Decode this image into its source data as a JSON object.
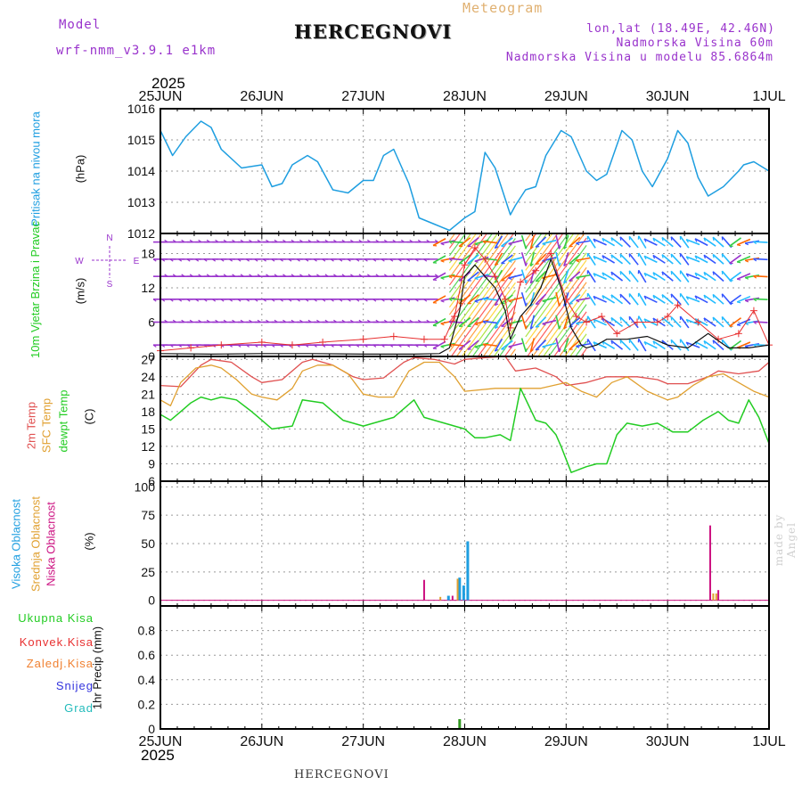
{
  "header": {
    "model_label": "Model",
    "model_name": "wrf-nmm_v3.9.1 e1km",
    "title": "HERCEGNOVI",
    "meteogram": "Meteogram",
    "lonlat": "lon,lat (18.49E, 42.46N)",
    "altitude": "Nadmorska Visina 60m",
    "model_altitude": "Nadmorska Visina u modelu 85.6864m",
    "year_top": "2025",
    "year_bottom": "2025",
    "footer_title": "HERCEGNOVI",
    "watermark": "made by Angel"
  },
  "colors": {
    "pressure": "#1e9ee0",
    "wind_speed": "#111111",
    "gust": "#e83030",
    "temp2m": "#e05050",
    "sfc_temp": "#e0a030",
    "dewpoint": "#22cc22",
    "high_cloud": "#1e9ee0",
    "mid_cloud": "#e0a030",
    "low_cloud": "#cc1080",
    "wind_barb": "#9933cc",
    "label_model": "#9933cc"
  },
  "chart_data": [
    {
      "type": "line",
      "panel": "pressure",
      "ylabel_name": "Pritisak na nivou mora",
      "ylabel_unit": "(hPa)",
      "ylim": [
        1012,
        1016
      ],
      "yticks": [
        1012,
        1013,
        1014,
        1015,
        1016
      ],
      "xlabels": [
        "25JUN",
        "26JUN",
        "27JUN",
        "28JUN",
        "29JUN",
        "30JUN",
        "1JUL"
      ],
      "grid": true,
      "series": [
        {
          "name": "Pritisak na nivou mora",
          "x": [
            0,
            0.12,
            0.25,
            0.4,
            0.5,
            0.6,
            0.8,
            1.0,
            1.1,
            1.2,
            1.3,
            1.45,
            1.55,
            1.7,
            1.85,
            2.0,
            2.1,
            2.2,
            2.3,
            2.45,
            2.55,
            2.7,
            2.85,
            3.0,
            3.1,
            3.2,
            3.3,
            3.45,
            3.5,
            3.6,
            3.7,
            3.8,
            3.95,
            4.05,
            4.2,
            4.3,
            4.4,
            4.55,
            4.65,
            4.75,
            4.85,
            5.0,
            5.1,
            5.2,
            5.3,
            5.4,
            5.55,
            5.7,
            5.75,
            5.85,
            6.0
          ],
          "values": [
            1015.3,
            1014.5,
            1015.1,
            1015.6,
            1015.4,
            1014.7,
            1014.1,
            1014.2,
            1013.5,
            1013.6,
            1014.2,
            1014.5,
            1014.3,
            1013.4,
            1013.3,
            1013.7,
            1013.7,
            1014.5,
            1014.7,
            1013.6,
            1012.5,
            1012.3,
            1012.1,
            1012.5,
            1012.7,
            1014.6,
            1014.1,
            1012.6,
            1012.9,
            1013.4,
            1013.5,
            1014.5,
            1015.3,
            1015.1,
            1014.0,
            1013.7,
            1013.9,
            1015.3,
            1015.0,
            1014.0,
            1013.5,
            1014.4,
            1015.3,
            1014.9,
            1013.8,
            1013.2,
            1013.5,
            1014.0,
            1014.2,
            1014.3,
            1014.0
          ]
        }
      ]
    },
    {
      "type": "line",
      "panel": "wind",
      "ylabel_name": "10m Vjetar Brzina i Pravac",
      "ylabel_unit": "(m/s)",
      "compass": {
        "n": "N",
        "s": "S",
        "e": "E",
        "w": "W"
      },
      "ylim": [
        0,
        21.5
      ],
      "yticks": [
        0,
        6,
        12,
        18
      ],
      "barb_levels": [
        2,
        6,
        10,
        14,
        17,
        20
      ],
      "grid": true,
      "series": [
        {
          "name": "brzina",
          "x": [
            0,
            0.5,
            1.0,
            1.5,
            2.0,
            2.5,
            2.75,
            2.85,
            2.95,
            3.0,
            3.1,
            3.2,
            3.3,
            3.4,
            3.45,
            3.55,
            3.65,
            3.75,
            3.85,
            3.95,
            4.05,
            4.15,
            4.2,
            4.3,
            4.4,
            4.6,
            4.8,
            5.0,
            5.2,
            5.4,
            5.6,
            5.8,
            6.0
          ],
          "values": [
            0.5,
            0.4,
            0.5,
            0.5,
            0.4,
            0.4,
            0.5,
            1.5,
            8,
            14,
            16,
            14,
            12,
            8,
            3,
            7,
            9,
            12,
            17,
            12,
            5,
            2,
            1.5,
            2,
            3,
            3,
            3.5,
            2,
            1.5,
            4,
            1.5,
            1.5,
            2
          ]
        },
        {
          "name": "udari",
          "x": [
            0,
            0.3,
            0.6,
            1.0,
            1.3,
            1.6,
            2.0,
            2.3,
            2.6,
            2.8,
            2.9,
            3.0,
            3.1,
            3.2,
            3.3,
            3.4,
            3.45,
            3.55,
            3.7,
            3.85,
            4.0,
            4.1,
            4.2,
            4.35,
            4.5,
            4.7,
            4.9,
            5.0,
            5.1,
            5.3,
            5.5,
            5.7,
            5.85,
            6.0
          ],
          "values": [
            1,
            1.5,
            2,
            2.5,
            2,
            2.5,
            3,
            3.5,
            3,
            3,
            7,
            16,
            19,
            17,
            14,
            10,
            5,
            13,
            15,
            18,
            10,
            7,
            6,
            7,
            4,
            6,
            6,
            7,
            9,
            6,
            3,
            4,
            8,
            2
          ]
        }
      ]
    },
    {
      "type": "line",
      "panel": "temperature",
      "ylabel_names": [
        "2m Temp",
        "SFC Temp",
        "dewpt Temp"
      ],
      "ylabel_unit": "(C)",
      "ylim": [
        6,
        27.5
      ],
      "yticks": [
        6,
        9,
        12,
        15,
        18,
        21,
        24,
        27
      ],
      "grid": true,
      "series": [
        {
          "name": "2m Temp",
          "x": [
            0,
            0.2,
            0.4,
            0.5,
            0.7,
            0.9,
            1.0,
            1.2,
            1.4,
            1.5,
            1.7,
            1.9,
            2.0,
            2.2,
            2.4,
            2.5,
            2.7,
            2.9,
            3.0,
            3.2,
            3.4,
            3.5,
            3.7,
            3.9,
            4.0,
            4.2,
            4.4,
            4.5,
            4.7,
            4.9,
            5.0,
            5.2,
            5.4,
            5.5,
            5.7,
            5.9,
            6.0
          ],
          "values": [
            22.5,
            22.3,
            26,
            27,
            26.5,
            24,
            23,
            23.5,
            26.5,
            27,
            26,
            24,
            23.5,
            23.8,
            26.5,
            27.3,
            27,
            26.2,
            27,
            27.3,
            27.5,
            25,
            25.5,
            24,
            22.5,
            23,
            24,
            24,
            24,
            23.5,
            22.8,
            22.8,
            24,
            25,
            24.5,
            25,
            26.5
          ]
        },
        {
          "name": "SFC Temp",
          "x": [
            0,
            0.1,
            0.2,
            0.35,
            0.5,
            0.6,
            0.75,
            0.9,
            1.0,
            1.15,
            1.3,
            1.4,
            1.55,
            1.7,
            1.85,
            2.0,
            2.15,
            2.3,
            2.45,
            2.6,
            2.75,
            2.9,
            3.0,
            3.3,
            3.5,
            3.75,
            4.0,
            4.15,
            4.3,
            4.45,
            4.6,
            4.8,
            5.0,
            5.1,
            5.25,
            5.4,
            5.55,
            5.7,
            5.85,
            6.0
          ],
          "values": [
            20,
            19,
            23,
            25.5,
            26,
            25.5,
            23.5,
            21,
            20.5,
            20,
            22,
            25,
            26,
            26,
            24.5,
            21,
            20.5,
            20.5,
            25,
            26.5,
            26.5,
            24,
            21.5,
            22,
            22,
            22,
            23,
            21.5,
            20.5,
            23,
            24,
            21.5,
            20,
            20.5,
            22.5,
            24,
            24.5,
            23,
            21.5,
            20.5
          ]
        },
        {
          "name": "dewpt Temp",
          "x": [
            0,
            0.1,
            0.2,
            0.3,
            0.4,
            0.5,
            0.6,
            0.75,
            0.9,
            1.0,
            1.1,
            1.3,
            1.4,
            1.6,
            1.8,
            2.0,
            2.1,
            2.3,
            2.5,
            2.6,
            2.8,
            3.0,
            3.1,
            3.2,
            3.35,
            3.45,
            3.55,
            3.7,
            3.8,
            3.9,
            3.95,
            4.05,
            4.2,
            4.3,
            4.4,
            4.5,
            4.6,
            4.75,
            4.9,
            5.05,
            5.2,
            5.35,
            5.5,
            5.6,
            5.7,
            5.8,
            5.9,
            6.0
          ],
          "values": [
            17.5,
            16.5,
            18,
            19.5,
            20.5,
            20,
            20.5,
            20,
            18,
            16.5,
            15,
            15.5,
            20,
            19.5,
            16.5,
            15.5,
            16,
            17,
            20,
            17,
            16,
            15,
            13.5,
            13.5,
            14,
            13,
            22,
            16.5,
            16,
            14,
            12,
            7.5,
            8.5,
            9,
            9,
            14,
            16,
            15.5,
            16,
            14.5,
            14.5,
            16.5,
            18,
            16.5,
            16,
            20,
            17,
            12.5
          ]
        }
      ]
    },
    {
      "type": "bar",
      "panel": "cloud",
      "ylabel_names": [
        "Visoka Oblacnost",
        "Srednja Oblacnost",
        "Niska Oblacnost"
      ],
      "ylabel_unit": "(%)",
      "ylim": [
        -5,
        105
      ],
      "yticks": [
        0,
        25,
        50,
        75,
        100
      ],
      "grid": true,
      "series": [
        {
          "name": "Visoka Oblacnost",
          "x": [
            2.84,
            2.95,
            2.99,
            3.03
          ],
          "values": [
            4,
            20,
            13,
            52
          ]
        },
        {
          "name": "Srednja Oblacnost",
          "x": [
            2.76,
            2.93,
            5.45,
            5.48
          ],
          "values": [
            3,
            19,
            6,
            6
          ]
        },
        {
          "name": "Niska Oblacnost",
          "x": [
            2.6,
            2.88,
            5.42,
            5.5
          ],
          "values": [
            18,
            4,
            66,
            9
          ]
        }
      ]
    },
    {
      "type": "bar",
      "panel": "precip",
      "labels": [
        "Ukupna Kisa",
        "Konvek.Kisa",
        "Zaledj.Kisa",
        "Snijeg",
        "Grad"
      ],
      "ylabel_unit": "1hr Precip (mm)",
      "ylim": [
        0,
        1.0
      ],
      "yticks": [
        0,
        0.2,
        0.4,
        0.6,
        0.8
      ],
      "grid": true,
      "series": [
        {
          "name": "Ukupna Kisa",
          "x": [
            2.95
          ],
          "values": [
            0.08
          ]
        }
      ]
    }
  ]
}
